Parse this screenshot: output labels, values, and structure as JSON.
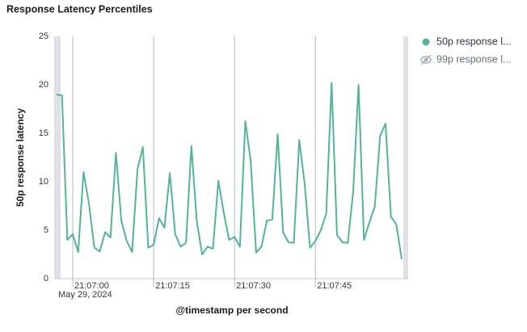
{
  "chart_data": {
    "type": "line",
    "title": "Response Latency Percentiles",
    "ylabel": "50p response latency",
    "xlabel": "@timestamp per second",
    "date_label": "May 29, 2024",
    "x": [
      "21:06:57",
      "21:06:58",
      "21:06:59",
      "21:07:00",
      "21:07:01",
      "21:07:02",
      "21:07:03",
      "21:07:04",
      "21:07:05",
      "21:07:06",
      "21:07:07",
      "21:07:08",
      "21:07:09",
      "21:07:10",
      "21:07:11",
      "21:07:12",
      "21:07:13",
      "21:07:14",
      "21:07:15",
      "21:07:16",
      "21:07:17",
      "21:07:18",
      "21:07:19",
      "21:07:20",
      "21:07:21",
      "21:07:22",
      "21:07:23",
      "21:07:24",
      "21:07:25",
      "21:07:26",
      "21:07:27",
      "21:07:28",
      "21:07:29",
      "21:07:30",
      "21:07:31",
      "21:07:32",
      "21:07:33",
      "21:07:34",
      "21:07:35",
      "21:07:36",
      "21:07:37",
      "21:07:38",
      "21:07:39",
      "21:07:40",
      "21:07:41",
      "21:07:42",
      "21:07:43",
      "21:07:44",
      "21:07:45",
      "21:07:46",
      "21:07:47",
      "21:07:48",
      "21:07:49",
      "21:07:50",
      "21:07:51",
      "21:07:52",
      "21:07:53",
      "21:07:54",
      "21:07:55",
      "21:07:56",
      "21:07:57",
      "21:07:58",
      "21:07:59",
      "21:08:00",
      "21:08:01"
    ],
    "series": [
      {
        "name": "50p response l...",
        "color": "#54b399",
        "visible": true,
        "values": [
          19.0,
          18.9,
          4.0,
          4.6,
          2.75,
          11.0,
          7.75,
          3.2,
          2.8,
          4.8,
          4.25,
          13.0,
          6.0,
          3.9,
          2.75,
          11.25,
          13.6,
          3.2,
          3.5,
          6.25,
          5.25,
          10.9,
          4.6,
          3.3,
          3.7,
          13.7,
          5.9,
          2.5,
          3.3,
          3.1,
          10.1,
          6.8,
          4.0,
          4.3,
          3.3,
          16.25,
          12.1,
          2.7,
          3.3,
          6.0,
          6.1,
          14.9,
          4.8,
          3.75,
          3.7,
          14.3,
          9.8,
          3.2,
          3.9,
          5.0,
          6.7,
          20.2,
          4.5,
          3.75,
          3.7,
          9.0,
          20.0,
          4.0,
          5.8,
          7.4,
          14.75,
          16.0,
          6.4,
          5.6,
          2.0
        ]
      },
      {
        "name": "99p response l...",
        "color": "#98a2b3",
        "visible": false
      }
    ],
    "xlim": [
      "21:06:57",
      "21:08:01"
    ],
    "xticks": [
      "21:07:00",
      "21:07:15",
      "21:07:30",
      "21:07:45"
    ],
    "ylim": [
      0,
      25
    ],
    "yticks": [
      0,
      5,
      10,
      15,
      20,
      25
    ],
    "grid": false
  }
}
